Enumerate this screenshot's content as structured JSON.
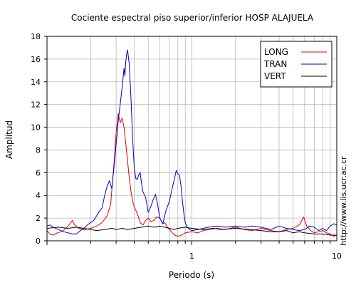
{
  "chart_data": {
    "type": "line",
    "title": "Cociente espectral piso superior/inferior  HOSP ALAJUELA",
    "xlabel": "Periodo (s)",
    "ylabel": "Amplitud",
    "xscale": "log",
    "xlim": [
      0.1,
      10
    ],
    "ylim": [
      0,
      18
    ],
    "yticks": [
      "0",
      "2",
      "4",
      "6",
      "8",
      "10",
      "12",
      "14",
      "16",
      "18"
    ],
    "xticklabels": [
      {
        "value": 1,
        "label": "1"
      },
      {
        "value": 10,
        "label": "10"
      }
    ],
    "grid": true,
    "legend_position": "top-right",
    "watermark": "http://www.lis.ucr.ac.cr",
    "series": [
      {
        "name": "LONG",
        "color": "#e00000",
        "points": [
          [
            0.1,
            0.9
          ],
          [
            0.105,
            0.6
          ],
          [
            0.11,
            0.5
          ],
          [
            0.118,
            0.7
          ],
          [
            0.125,
            0.8
          ],
          [
            0.13,
            0.9
          ],
          [
            0.14,
            1.3
          ],
          [
            0.15,
            1.8
          ],
          [
            0.155,
            1.4
          ],
          [
            0.165,
            1.1
          ],
          [
            0.18,
            1.0
          ],
          [
            0.2,
            1.1
          ],
          [
            0.22,
            1.3
          ],
          [
            0.24,
            1.6
          ],
          [
            0.26,
            2.2
          ],
          [
            0.275,
            3.2
          ],
          [
            0.29,
            6.8
          ],
          [
            0.3,
            9.5
          ],
          [
            0.31,
            11.2
          ],
          [
            0.32,
            10.4
          ],
          [
            0.33,
            10.8
          ],
          [
            0.34,
            10.0
          ],
          [
            0.35,
            8.5
          ],
          [
            0.36,
            7.0
          ],
          [
            0.37,
            5.5
          ],
          [
            0.38,
            4.3
          ],
          [
            0.39,
            3.5
          ],
          [
            0.4,
            3.0
          ],
          [
            0.42,
            2.4
          ],
          [
            0.44,
            1.6
          ],
          [
            0.46,
            1.4
          ],
          [
            0.48,
            1.8
          ],
          [
            0.5,
            2.0
          ],
          [
            0.52,
            1.7
          ],
          [
            0.55,
            1.8
          ],
          [
            0.57,
            2.1
          ],
          [
            0.6,
            2.0
          ],
          [
            0.63,
            1.5
          ],
          [
            0.65,
            1.6
          ],
          [
            0.68,
            1.2
          ],
          [
            0.72,
            0.8
          ],
          [
            0.76,
            0.5
          ],
          [
            0.8,
            0.4
          ],
          [
            0.85,
            0.5
          ],
          [
            0.9,
            0.7
          ],
          [
            1.0,
            0.8
          ],
          [
            1.1,
            0.7
          ],
          [
            1.2,
            0.9
          ],
          [
            1.3,
            1.0
          ],
          [
            1.5,
            1.1
          ],
          [
            1.7,
            1.0
          ],
          [
            2.0,
            1.2
          ],
          [
            2.3,
            1.0
          ],
          [
            2.6,
            0.9
          ],
          [
            3.0,
            1.1
          ],
          [
            3.5,
            0.9
          ],
          [
            4.0,
            0.8
          ],
          [
            4.5,
            1.0
          ],
          [
            5.0,
            1.1
          ],
          [
            5.5,
            1.4
          ],
          [
            5.9,
            2.1
          ],
          [
            6.2,
            1.3
          ],
          [
            6.6,
            0.9
          ],
          [
            7.0,
            0.7
          ],
          [
            7.5,
            0.8
          ],
          [
            8.0,
            0.9
          ],
          [
            8.5,
            0.7
          ],
          [
            9.0,
            0.6
          ],
          [
            9.5,
            0.4
          ],
          [
            10,
            0.5
          ]
        ]
      },
      {
        "name": "TRAN",
        "color": "#0000cc",
        "points": [
          [
            0.1,
            1.3
          ],
          [
            0.105,
            1.4
          ],
          [
            0.11,
            1.2
          ],
          [
            0.12,
            1.0
          ],
          [
            0.13,
            0.8
          ],
          [
            0.14,
            0.7
          ],
          [
            0.15,
            0.6
          ],
          [
            0.16,
            0.6
          ],
          [
            0.17,
            0.9
          ],
          [
            0.18,
            1.1
          ],
          [
            0.19,
            1.4
          ],
          [
            0.2,
            1.6
          ],
          [
            0.21,
            1.8
          ],
          [
            0.22,
            2.2
          ],
          [
            0.23,
            2.6
          ],
          [
            0.24,
            2.9
          ],
          [
            0.25,
            4.0
          ],
          [
            0.26,
            4.8
          ],
          [
            0.27,
            5.3
          ],
          [
            0.28,
            4.6
          ],
          [
            0.29,
            6.5
          ],
          [
            0.3,
            8.5
          ],
          [
            0.31,
            10.5
          ],
          [
            0.32,
            12.0
          ],
          [
            0.33,
            13.5
          ],
          [
            0.34,
            15.2
          ],
          [
            0.345,
            14.5
          ],
          [
            0.35,
            15.8
          ],
          [
            0.355,
            16.5
          ],
          [
            0.36,
            16.8
          ],
          [
            0.37,
            15.5
          ],
          [
            0.38,
            12.5
          ],
          [
            0.39,
            9.0
          ],
          [
            0.4,
            6.5
          ],
          [
            0.41,
            5.5
          ],
          [
            0.42,
            5.4
          ],
          [
            0.43,
            5.8
          ],
          [
            0.44,
            6.0
          ],
          [
            0.45,
            5.0
          ],
          [
            0.46,
            4.3
          ],
          [
            0.48,
            3.8
          ],
          [
            0.5,
            2.5
          ],
          [
            0.52,
            3.0
          ],
          [
            0.54,
            3.6
          ],
          [
            0.56,
            4.1
          ],
          [
            0.58,
            3.2
          ],
          [
            0.6,
            2.0
          ],
          [
            0.63,
            1.5
          ],
          [
            0.66,
            2.6
          ],
          [
            0.7,
            3.5
          ],
          [
            0.73,
            4.6
          ],
          [
            0.76,
            5.5
          ],
          [
            0.78,
            6.2
          ],
          [
            0.8,
            5.9
          ],
          [
            0.82,
            5.8
          ],
          [
            0.84,
            4.9
          ],
          [
            0.86,
            3.5
          ],
          [
            0.88,
            2.4
          ],
          [
            0.9,
            1.6
          ],
          [
            0.93,
            1.2
          ],
          [
            0.96,
            1.0
          ],
          [
            1.0,
            0.9
          ],
          [
            1.1,
            1.0
          ],
          [
            1.2,
            1.1
          ],
          [
            1.3,
            1.2
          ],
          [
            1.5,
            1.3
          ],
          [
            1.7,
            1.2
          ],
          [
            2.0,
            1.3
          ],
          [
            2.3,
            1.2
          ],
          [
            2.6,
            1.3
          ],
          [
            3.0,
            1.2
          ],
          [
            3.5,
            1.0
          ],
          [
            4.0,
            1.3
          ],
          [
            4.5,
            1.1
          ],
          [
            5.0,
            1.0
          ],
          [
            5.5,
            0.9
          ],
          [
            6.0,
            1.0
          ],
          [
            6.5,
            1.3
          ],
          [
            7.0,
            1.2
          ],
          [
            7.5,
            0.9
          ],
          [
            8.0,
            1.1
          ],
          [
            8.5,
            0.9
          ],
          [
            9.0,
            1.3
          ],
          [
            9.5,
            1.5
          ],
          [
            10,
            1.4
          ]
        ]
      },
      {
        "name": "VERT",
        "color": "#000000",
        "points": [
          [
            0.1,
            1.1
          ],
          [
            0.12,
            1.2
          ],
          [
            0.14,
            1.1
          ],
          [
            0.16,
            1.2
          ],
          [
            0.18,
            1.1
          ],
          [
            0.2,
            1.0
          ],
          [
            0.22,
            0.9
          ],
          [
            0.25,
            1.0
          ],
          [
            0.28,
            1.1
          ],
          [
            0.3,
            1.0
          ],
          [
            0.33,
            1.1
          ],
          [
            0.36,
            1.0
          ],
          [
            0.4,
            1.1
          ],
          [
            0.45,
            1.2
          ],
          [
            0.5,
            1.3
          ],
          [
            0.55,
            1.2
          ],
          [
            0.6,
            1.3
          ],
          [
            0.65,
            1.2
          ],
          [
            0.7,
            1.1
          ],
          [
            0.75,
            1.0
          ],
          [
            0.8,
            1.1
          ],
          [
            0.9,
            1.2
          ],
          [
            1.0,
            1.1
          ],
          [
            1.2,
            1.0
          ],
          [
            1.4,
            1.1
          ],
          [
            1.6,
            1.0
          ],
          [
            2.0,
            1.1
          ],
          [
            2.5,
            1.0
          ],
          [
            3.0,
            0.9
          ],
          [
            3.5,
            0.8
          ],
          [
            4.0,
            0.8
          ],
          [
            4.5,
            0.9
          ],
          [
            5.0,
            0.7
          ],
          [
            5.5,
            0.8
          ],
          [
            6.0,
            0.7
          ],
          [
            7.0,
            0.6
          ],
          [
            8.0,
            0.6
          ],
          [
            9.0,
            0.5
          ],
          [
            10,
            0.5
          ]
        ]
      }
    ]
  }
}
